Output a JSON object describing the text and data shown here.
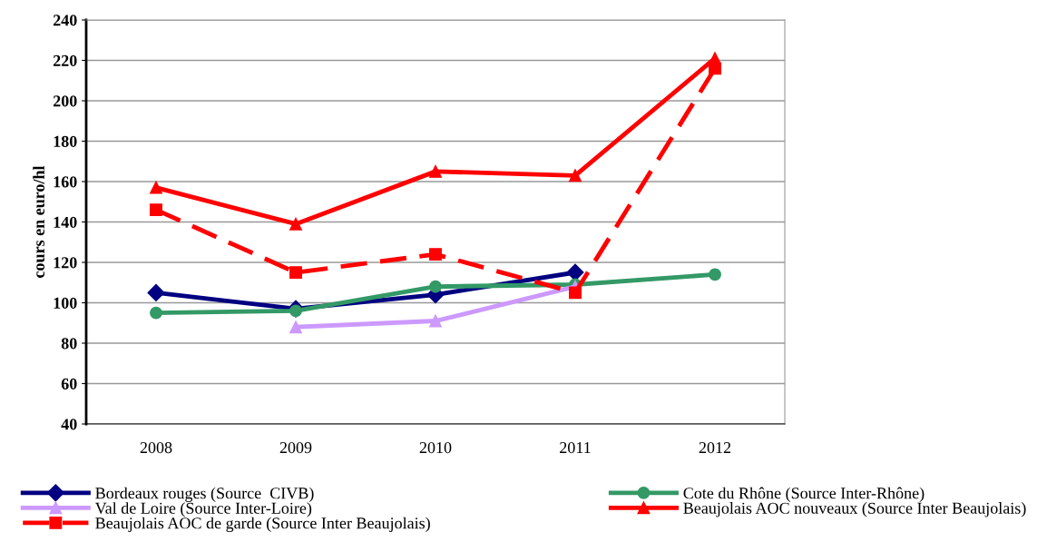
{
  "chart_data": {
    "type": "line",
    "ylabel": "cours en euro/hl",
    "categories": [
      "2008",
      "2009",
      "2010",
      "2011",
      "2012"
    ],
    "series": [
      {
        "name": "Bordeaux rouges (Source  CIVB)",
        "color": "#000080",
        "marker": "diamond",
        "line_style": "solid",
        "values": [
          105,
          97,
          104,
          115,
          null
        ]
      },
      {
        "name": "Cote du Rhône (Source Inter-Rhône)",
        "color": "#339966",
        "marker": "circle",
        "line_style": "solid",
        "values": [
          95,
          96,
          108,
          109,
          114
        ]
      },
      {
        "name": "Val de Loire (Source Inter-Loire)",
        "color": "#cc99ff",
        "marker": "triangle",
        "line_style": "solid",
        "values": [
          null,
          88,
          91,
          108,
          null
        ]
      },
      {
        "name": "Beaujolais AOC nouveaux (Source Inter Beaujolais)",
        "color": "#ff0000",
        "marker": "triangle",
        "line_style": "solid",
        "values": [
          157,
          139,
          165,
          163,
          221
        ]
      },
      {
        "name": "Beaujolais AOC de garde (Source Inter Beaujolais)",
        "color": "#ff0000",
        "marker": "square",
        "line_style": "dashed",
        "values": [
          146,
          115,
          124,
          105,
          216
        ]
      }
    ],
    "ylim": [
      40,
      240
    ],
    "yticks": [
      40,
      60,
      80,
      100,
      120,
      140,
      160,
      180,
      200,
      220,
      240
    ],
    "grid": "y",
    "legend": "bottom"
  }
}
